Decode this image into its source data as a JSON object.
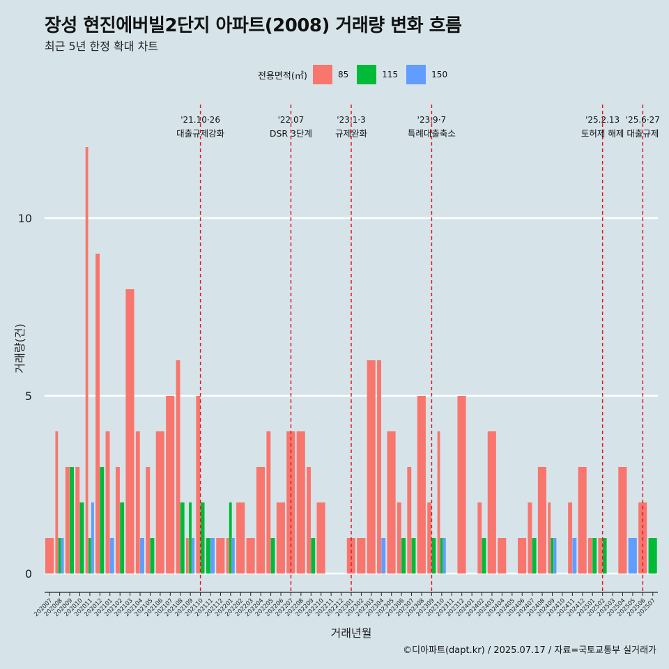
{
  "title": "장성 현진에버빌2단지 아파트(2008) 거래량 변화 흐름",
  "subtitle": "최근 5년 한정 확대 차트",
  "footer": "©디아파트(dapt.kr) / 2025.07.17 / 자료=국토교통부 실거래가",
  "colors": {
    "background": "#d6e4ea",
    "s85": "#f8766d",
    "s115": "#00ba38",
    "s150": "#619cff",
    "vline": "#e8141e",
    "grid": "#ffffff"
  },
  "chart_data": {
    "type": "bar",
    "xlabel": "거래년월",
    "ylabel": "거래량(건)",
    "legend_title": "전용면적(㎡)",
    "legend_position": "top",
    "ylim": [
      0,
      12.5
    ],
    "yticks": [
      0,
      5,
      10
    ],
    "grid": true,
    "categories": [
      "202007",
      "202008",
      "202009",
      "202010",
      "202011",
      "202012",
      "202101",
      "202102",
      "202103",
      "202104",
      "202105",
      "202106",
      "202107",
      "202108",
      "202109",
      "202110",
      "202111",
      "202112",
      "202201",
      "202202",
      "202203",
      "202204",
      "202205",
      "202206",
      "202207",
      "202208",
      "202209",
      "202210",
      "202211",
      "202212",
      "202301",
      "202302",
      "202303",
      "202304",
      "202305",
      "202306",
      "202307",
      "202308",
      "202309",
      "202310",
      "202311",
      "202312",
      "202401",
      "202402",
      "202403",
      "202404",
      "202405",
      "202406",
      "202407",
      "202408",
      "202409",
      "202410",
      "202411",
      "202412",
      "202501",
      "202502",
      "202503",
      "202504",
      "202505",
      "202506",
      "202507"
    ],
    "series": [
      {
        "name": "85",
        "color": "#f8766d",
        "values": [
          1,
          4,
          3,
          3,
          12,
          9,
          4,
          3,
          8,
          4,
          3,
          4,
          5,
          6,
          1,
          5,
          0,
          1,
          1,
          2,
          1,
          3,
          4,
          2,
          4,
          4,
          3,
          2,
          0,
          0,
          1,
          1,
          6,
          6,
          4,
          2,
          3,
          5,
          2,
          4,
          0,
          5,
          0,
          2,
          4,
          1,
          0,
          1,
          2,
          3,
          2,
          0,
          2,
          3,
          1,
          1,
          0,
          3,
          0,
          2,
          0
        ]
      },
      {
        "name": "115",
        "color": "#00ba38",
        "values": [
          0,
          1,
          3,
          2,
          1,
          3,
          0,
          2,
          0,
          0,
          1,
          0,
          0,
          2,
          2,
          2,
          1,
          0,
          2,
          0,
          0,
          0,
          1,
          0,
          0,
          0,
          1,
          0,
          0,
          0,
          0,
          0,
          0,
          0,
          0,
          1,
          1,
          0,
          1,
          1,
          0,
          0,
          0,
          1,
          0,
          0,
          0,
          0,
          1,
          0,
          1,
          0,
          0,
          0,
          1,
          1,
          0,
          0,
          0,
          0,
          1
        ]
      },
      {
        "name": "150",
        "color": "#619cff",
        "values": [
          0,
          1,
          0,
          0,
          2,
          0,
          1,
          0,
          0,
          1,
          0,
          0,
          0,
          0,
          1,
          0,
          1,
          0,
          1,
          0,
          0,
          0,
          0,
          0,
          0,
          0,
          0,
          0,
          0,
          0,
          0,
          0,
          0,
          1,
          0,
          0,
          0,
          0,
          0,
          1,
          0,
          0,
          0,
          0,
          0,
          0,
          0,
          0,
          0,
          0,
          1,
          0,
          1,
          0,
          0,
          0,
          0,
          0,
          1,
          0,
          0
        ]
      }
    ],
    "annotations": [
      {
        "at": "202110",
        "date": "'21.10·26",
        "label": "대출규제강화"
      },
      {
        "at": "202207",
        "date": "'22.07",
        "label": "DSR 3단계"
      },
      {
        "at": "202301",
        "date": "'23.1·3",
        "label": "규제완화"
      },
      {
        "at": "202309",
        "date": "'23.9·7",
        "label": "특례대출축소"
      },
      {
        "at": "202502",
        "date": "'25.2.13",
        "label": "토허제 해제"
      },
      {
        "at": "202506",
        "date": "'25.6·27",
        "label": "대출규제"
      }
    ]
  }
}
